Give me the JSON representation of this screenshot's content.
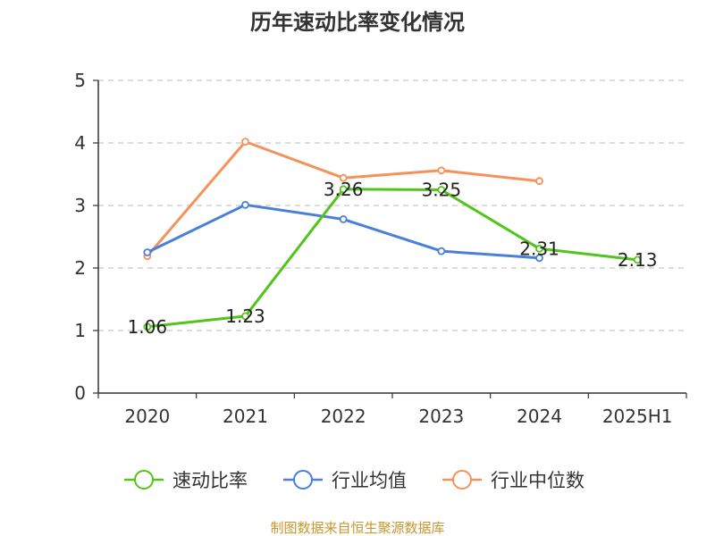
{
  "chart_data": {
    "type": "line",
    "title": "历年速动比率变化情况",
    "categories": [
      "2020",
      "2021",
      "2022",
      "2023",
      "2024",
      "2025H1"
    ],
    "y_ticks": [
      "0",
      "1",
      "2",
      "3",
      "4",
      "5"
    ],
    "ylim": [
      0,
      5
    ],
    "grid": "horizontal dashed",
    "legend_position": "bottom",
    "series": [
      {
        "name": "速动比率",
        "color": "#52c41a",
        "values": [
          1.06,
          1.23,
          3.26,
          3.25,
          2.31,
          2.13
        ],
        "labels": [
          "1.06",
          "1.23",
          "3.26",
          "3.25",
          "2.31",
          "2.13"
        ]
      },
      {
        "name": "行业均值",
        "color": "#4a7fd9",
        "values": [
          2.25,
          3.01,
          2.78,
          2.27,
          2.16,
          null
        ]
      },
      {
        "name": "行业中位数",
        "color": "#f5915a",
        "values": [
          2.19,
          4.02,
          3.44,
          3.56,
          3.39,
          null
        ]
      }
    ]
  },
  "source_text": "制图数据来自恒生聚源数据库",
  "source_color": "#c8962d"
}
